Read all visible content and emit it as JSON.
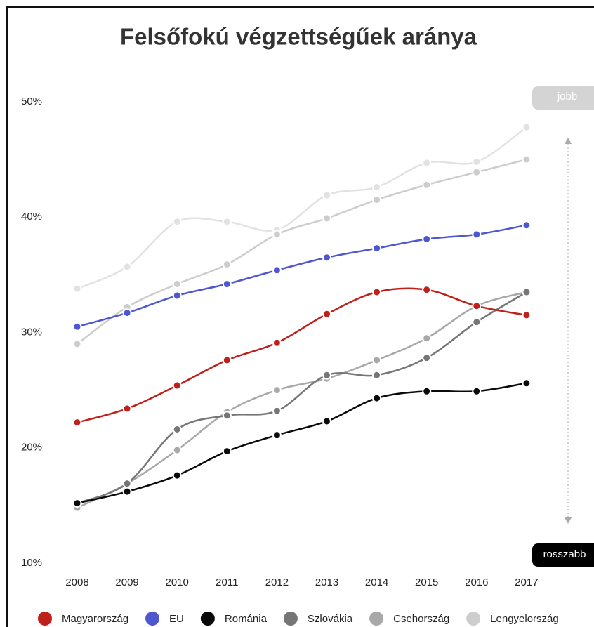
{
  "chart_data": {
    "type": "line",
    "title": "Felsőfokú végzettségűek aránya",
    "categories": [
      "2008",
      "2009",
      "2010",
      "2011",
      "2012",
      "2013",
      "2014",
      "2015",
      "2016",
      "2017"
    ],
    "series": [
      {
        "name": "Magyarország",
        "color": "#c0201c",
        "values": [
          22.2,
          23.4,
          25.4,
          27.6,
          29.1,
          31.6,
          33.5,
          33.7,
          32.3,
          31.5
        ]
      },
      {
        "name": "EU",
        "color": "#4f57d0",
        "values": [
          30.5,
          31.7,
          33.2,
          34.2,
          35.4,
          36.5,
          37.3,
          38.1,
          38.5,
          39.3
        ]
      },
      {
        "name": "Románia",
        "color": "#0a0a0a",
        "values": [
          15.2,
          16.2,
          17.6,
          19.7,
          21.1,
          22.3,
          24.3,
          24.9,
          24.9,
          25.6
        ]
      },
      {
        "name": "Szlovákia",
        "color": "#767676",
        "values": [
          15.2,
          16.9,
          21.6,
          22.8,
          23.2,
          26.3,
          26.3,
          27.8,
          30.9,
          33.5
        ]
      },
      {
        "name": "Csehország",
        "color": "#a8a8a8",
        "values": [
          14.8,
          16.9,
          19.8,
          23.1,
          25.0,
          26.0,
          27.6,
          29.5,
          32.3,
          33.5
        ]
      },
      {
        "name": "Lengyelország",
        "color": "#cdcdcd",
        "values": [
          29.0,
          32.2,
          34.2,
          35.9,
          38.5,
          39.9,
          41.5,
          42.8,
          43.9,
          45.0
        ]
      },
      {
        "color": "#e2e2e2",
        "values": [
          33.8,
          35.7,
          39.6,
          39.6,
          38.9,
          41.9,
          42.6,
          44.7,
          44.8,
          47.8
        ]
      }
    ],
    "ylim": [
      10,
      50
    ],
    "yticks": [
      {
        "value": 10,
        "label": "10%"
      },
      {
        "value": 20,
        "label": "20%"
      },
      {
        "value": 30,
        "label": "30%"
      },
      {
        "value": 40,
        "label": "40%"
      },
      {
        "value": 50,
        "label": "50%"
      }
    ],
    "annotations": [
      "jobb",
      "rosszabb"
    ]
  }
}
